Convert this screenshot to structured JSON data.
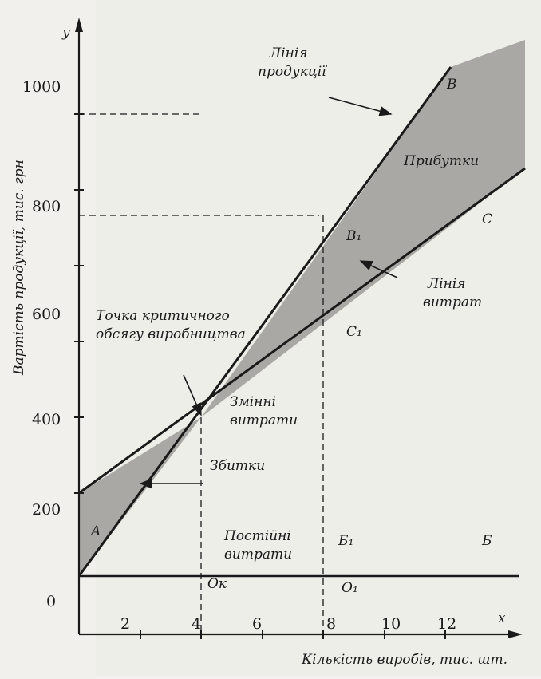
{
  "axes": {
    "y_axis_letter": "y",
    "x_axis_letter": "x",
    "y_label": "Вартість продукції, тис. грн",
    "x_label": "Кількість виробів, тис. шт.",
    "y_ticks": [
      "0",
      "200",
      "400",
      "600",
      "800",
      "1000"
    ],
    "x_ticks": [
      "2",
      "4",
      "6",
      "8",
      "10",
      "12"
    ]
  },
  "labels": {
    "product_line": [
      "Лінія",
      "продукції"
    ],
    "cost_line": [
      "Лінія",
      "витрат"
    ],
    "critical_point": [
      "Точка критичного",
      "обсягу виробництва"
    ],
    "variable_costs": [
      "Змінні",
      "витрати"
    ],
    "fixed_costs": [
      "Постійні",
      "витрати"
    ],
    "losses": "Збитки",
    "profits": "Прибутки"
  },
  "points": {
    "A": "A",
    "B": "B",
    "C": "C",
    "B1": "B₁",
    "C1": "C₁",
    "Bprime": "Б",
    "B1prime": "Б₁",
    "Ok": "Oк",
    "O1": "O₁"
  },
  "colors": {
    "shade": "#a9a8a4",
    "line": "#1a1a1a",
    "background": "#f1f0ec"
  }
}
